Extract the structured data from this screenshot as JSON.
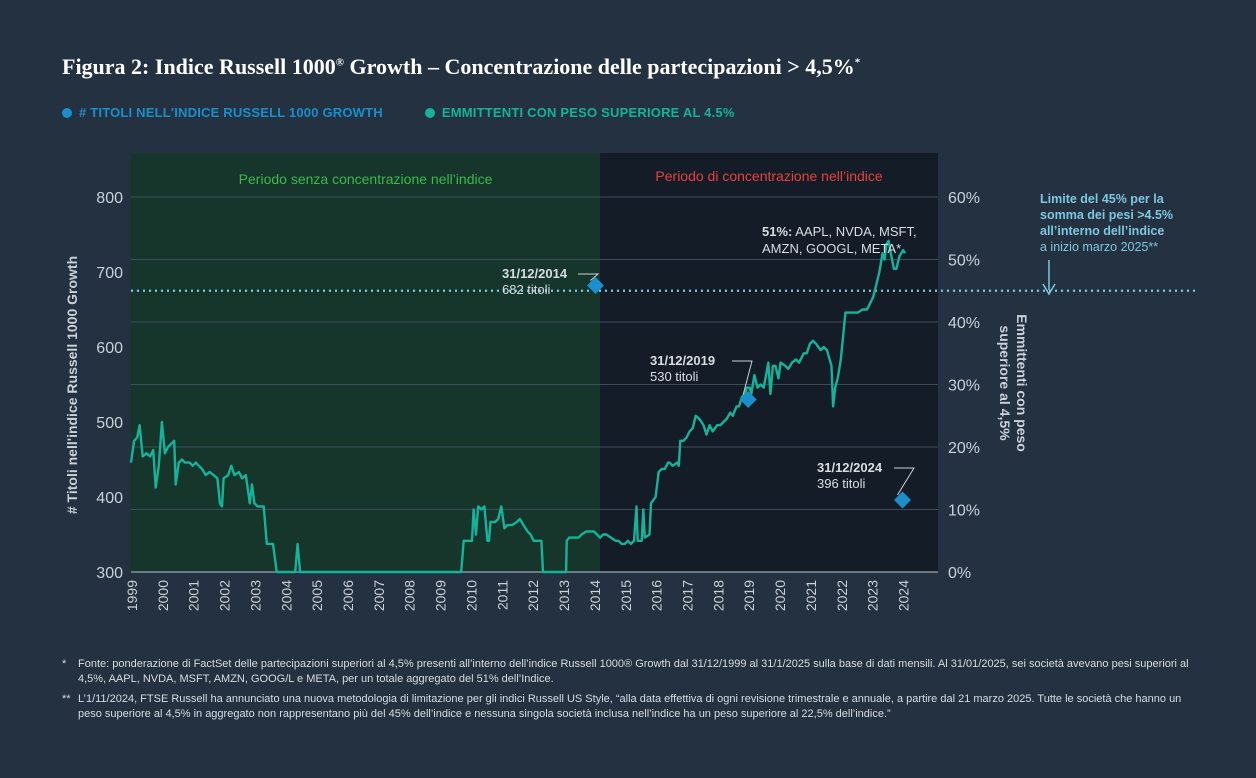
{
  "title": "Figura 2: Indice Russell 1000",
  "title_reg": "®",
  "title_rest": " Growth – Concentrazione delle partecipazioni > 4,5%",
  "title_star": "*",
  "colors": {
    "background": "#233140",
    "period1_bg": "#16352b",
    "period2_bg": "#141d27",
    "series_count": "#1a8fcc",
    "series_line": "#14b39a",
    "period1_label": "#3cba4a",
    "period2_label": "#e8413a",
    "limit_line": "#7ec7e0",
    "marker": "#1a8fcc"
  },
  "legend": [
    {
      "label": "# TITOLI NELL'INDICE RUSSELL 1000 GROWTH",
      "color": "#1a8fcc"
    },
    {
      "label": "EMMITTENTI CON PESO SUPERIORE AL 4.5%",
      "color": "#14b39a"
    }
  ],
  "footnotes": [
    {
      "mark": "*",
      "text": "Fonte: ponderazione di FactSet delle partecipazioni superiori al 4,5% presenti all’interno dell’indice Russell 1000® Growth dal 31/12/1999 al 31/1/2025 sulla base di dati mensili. Al 31/01/2025, sei società avevano pesi superiori al 4,5%, AAPL, NVDA, MSFT, AMZN, GOOG/L e META, per un totale aggregato del 51% dell’Indice."
    },
    {
      "mark": "**",
      "text": "L’1/11/2024, FTSE Russell ha annunciato una nuova metodologia di limitazione per gli indici Russell US Style, “alla data effettiva di ogni revisione trimestrale e annuale, a partire dal 21 marzo 2025. Tutte le società che hanno un peso superiore al 4,5% in aggregato non rappresentano più del 45% dell’indice e nessuna singola società inclusa nell’indice ha un peso superiore al 22,5% dell’indice.”"
    }
  ],
  "chart_data": {
    "type": "line",
    "title": "Figura 2: Indice Russell 1000® Growth – Concentrazione delle partecipazioni > 4,5%",
    "ylabel_left": "# Titoli nell'indice Russell 1000 Growth",
    "ylabel_right": "Emmittenti con peso superiore al 4,5%",
    "ylim_left": [
      300,
      840
    ],
    "ylim_right": [
      0,
      64
    ],
    "x_range": [
      1999.0,
      2025.15
    ],
    "left_ticks": [
      "300",
      "400",
      "500",
      "600",
      "700",
      "800"
    ],
    "left_tick_values": [
      300,
      400,
      500,
      600,
      700,
      800
    ],
    "right_ticks": [
      "0%",
      "10%",
      "20%",
      "30%",
      "40%",
      "50%",
      "60%"
    ],
    "right_tick_values": [
      0,
      10,
      20,
      30,
      40,
      50,
      60
    ],
    "x_ticks": [
      "1999",
      "2000",
      "2001",
      "2002",
      "2003",
      "2004",
      "2005",
      "2006",
      "2007",
      "2008",
      "2009",
      "2010",
      "2011",
      "2012",
      "2013",
      "2014",
      "2015",
      "2016",
      "2017",
      "2018",
      "2019",
      "2020",
      "2021",
      "2022",
      "2023",
      "2024"
    ],
    "periods": [
      {
        "label": "Periodo senza concentrazione nell’indice",
        "from": 1999.0,
        "to": 2014.2
      },
      {
        "label": "Periodo di concentrazione nell’indice",
        "from": 2014.2,
        "to": 2025.15
      }
    ],
    "limit": {
      "value": 45,
      "label_lines": [
        "Limite del 45% per la",
        "somma dei pesi >4.5%",
        "all’interno dell’indice"
      ],
      "sublabel": "a inizio marzo 2025**"
    },
    "series": [
      {
        "name": "Emmittenti con peso superiore al 4.5%",
        "axis": "right",
        "points": [
          [
            1999.0,
            17.5
          ],
          [
            1999.1,
            21
          ],
          [
            1999.2,
            21.5
          ],
          [
            1999.28,
            23.5
          ],
          [
            1999.38,
            18.5
          ],
          [
            1999.5,
            19
          ],
          [
            1999.62,
            18.5
          ],
          [
            1999.72,
            19.5
          ],
          [
            1999.8,
            13.5
          ],
          [
            1999.9,
            17
          ],
          [
            2000.0,
            24
          ],
          [
            2000.1,
            19
          ],
          [
            2000.2,
            20
          ],
          [
            2000.3,
            20.5
          ],
          [
            2000.4,
            21
          ],
          [
            2000.45,
            14
          ],
          [
            2000.55,
            17.5
          ],
          [
            2000.65,
            18
          ],
          [
            2000.75,
            17.5
          ],
          [
            2000.9,
            17.5
          ],
          [
            2001.0,
            17
          ],
          [
            2001.1,
            17.5
          ],
          [
            2001.2,
            17
          ],
          [
            2001.3,
            16.5
          ],
          [
            2001.42,
            15.5
          ],
          [
            2001.55,
            16
          ],
          [
            2001.68,
            15.5
          ],
          [
            2001.8,
            15
          ],
          [
            2001.88,
            11
          ],
          [
            2001.95,
            10.5
          ],
          [
            2002.0,
            15
          ],
          [
            2002.15,
            15.5
          ],
          [
            2002.25,
            17
          ],
          [
            2002.35,
            15.5
          ],
          [
            2002.5,
            16
          ],
          [
            2002.6,
            15
          ],
          [
            2002.72,
            15.5
          ],
          [
            2002.85,
            11
          ],
          [
            2002.92,
            14
          ],
          [
            2003.0,
            11
          ],
          [
            2003.1,
            10.5
          ],
          [
            2003.2,
            10.5
          ],
          [
            2003.3,
            10.5
          ],
          [
            2003.4,
            4.5
          ],
          [
            2003.5,
            4.5
          ],
          [
            2003.6,
            4.5
          ],
          [
            2003.72,
            0
          ],
          [
            2004.0,
            0
          ],
          [
            2004.32,
            0
          ],
          [
            2004.4,
            4.5
          ],
          [
            2004.48,
            0
          ],
          [
            2005.0,
            0
          ],
          [
            2006.0,
            0
          ],
          [
            2007.0,
            0
          ],
          [
            2008.0,
            0
          ],
          [
            2009.0,
            0
          ],
          [
            2009.7,
            0
          ],
          [
            2009.78,
            5
          ],
          [
            2010.0,
            5
          ],
          [
            2010.05,
            5
          ],
          [
            2010.1,
            10
          ],
          [
            2010.18,
            6
          ],
          [
            2010.25,
            10.5
          ],
          [
            2010.35,
            10
          ],
          [
            2010.45,
            10.5
          ],
          [
            2010.55,
            5
          ],
          [
            2010.6,
            5
          ],
          [
            2010.65,
            8
          ],
          [
            2010.8,
            8
          ],
          [
            2010.9,
            8.5
          ],
          [
            2011.0,
            10.5
          ],
          [
            2011.1,
            7
          ],
          [
            2011.2,
            7.5
          ],
          [
            2011.35,
            7.5
          ],
          [
            2011.5,
            8
          ],
          [
            2011.6,
            8.5
          ],
          [
            2011.72,
            7.5
          ],
          [
            2011.85,
            6.5
          ],
          [
            2011.95,
            6
          ],
          [
            2012.05,
            5
          ],
          [
            2012.2,
            5
          ],
          [
            2012.3,
            5
          ],
          [
            2012.35,
            0
          ],
          [
            2013.0,
            0
          ],
          [
            2013.1,
            0
          ],
          [
            2013.12,
            5
          ],
          [
            2013.2,
            5.5
          ],
          [
            2013.3,
            5.5
          ],
          [
            2013.5,
            5.5
          ],
          [
            2013.6,
            6
          ],
          [
            2013.75,
            6.5
          ],
          [
            2013.9,
            6.5
          ],
          [
            2014.0,
            6.5
          ],
          [
            2014.1,
            6
          ],
          [
            2014.2,
            5.5
          ],
          [
            2014.3,
            6
          ],
          [
            2014.4,
            6
          ],
          [
            2014.55,
            5.5
          ],
          [
            2014.7,
            5
          ],
          [
            2014.8,
            5
          ],
          [
            2014.9,
            4.5
          ],
          [
            2015.0,
            4.5
          ],
          [
            2015.1,
            5
          ],
          [
            2015.2,
            4.5
          ],
          [
            2015.3,
            5
          ],
          [
            2015.38,
            10.5
          ],
          [
            2015.42,
            5
          ],
          [
            2015.55,
            5
          ],
          [
            2015.6,
            10
          ],
          [
            2015.65,
            5.5
          ],
          [
            2015.8,
            6
          ],
          [
            2015.85,
            11
          ],
          [
            2016.0,
            12
          ],
          [
            2016.1,
            16
          ],
          [
            2016.2,
            16.5
          ],
          [
            2016.3,
            16.5
          ],
          [
            2016.4,
            17.5
          ],
          [
            2016.45,
            17.5
          ],
          [
            2016.55,
            17
          ],
          [
            2016.7,
            17.5
          ],
          [
            2016.75,
            17
          ],
          [
            2016.8,
            21
          ],
          [
            2016.9,
            21
          ],
          [
            2017.0,
            21.5
          ],
          [
            2017.1,
            22.5
          ],
          [
            2017.2,
            23
          ],
          [
            2017.3,
            25
          ],
          [
            2017.42,
            24.5
          ],
          [
            2017.55,
            23.5
          ],
          [
            2017.65,
            22
          ],
          [
            2017.75,
            23.5
          ],
          [
            2017.85,
            22.5
          ],
          [
            2018.0,
            23.5
          ],
          [
            2018.1,
            23.5
          ],
          [
            2018.2,
            24
          ],
          [
            2018.3,
            24.5
          ],
          [
            2018.42,
            25.5
          ],
          [
            2018.5,
            25
          ],
          [
            2018.62,
            26.5
          ],
          [
            2018.7,
            26.5
          ],
          [
            2018.8,
            28
          ],
          [
            2018.9,
            28.5
          ],
          [
            2018.95,
            29.5
          ],
          [
            2019.05,
            29.5
          ],
          [
            2019.1,
            28.5
          ],
          [
            2019.2,
            31.5
          ],
          [
            2019.3,
            29.5
          ],
          [
            2019.4,
            30
          ],
          [
            2019.5,
            29.5
          ],
          [
            2019.6,
            32
          ],
          [
            2019.65,
            33.5
          ],
          [
            2019.72,
            28.5
          ],
          [
            2019.8,
            33
          ],
          [
            2019.88,
            33
          ],
          [
            2019.98,
            31
          ],
          [
            2020.05,
            33.5
          ],
          [
            2020.2,
            33
          ],
          [
            2020.3,
            32.5
          ],
          [
            2020.42,
            33.5
          ],
          [
            2020.55,
            34
          ],
          [
            2020.65,
            33.5
          ],
          [
            2020.8,
            35
          ],
          [
            2020.9,
            35
          ],
          [
            2021.0,
            36.5
          ],
          [
            2021.1,
            37
          ],
          [
            2021.2,
            36.5
          ],
          [
            2021.35,
            35.5
          ],
          [
            2021.45,
            36
          ],
          [
            2021.55,
            35.5
          ],
          [
            2021.7,
            33
          ],
          [
            2021.75,
            26.5
          ],
          [
            2021.82,
            29.5
          ],
          [
            2021.9,
            31
          ],
          [
            2022.0,
            34
          ],
          [
            2022.1,
            39
          ],
          [
            2022.15,
            41.5
          ],
          [
            2022.3,
            41.5
          ],
          [
            2022.45,
            41.5
          ],
          [
            2022.55,
            41.5
          ],
          [
            2022.7,
            42
          ],
          [
            2022.85,
            42
          ],
          [
            2022.95,
            43
          ],
          [
            2023.05,
            44
          ],
          [
            2023.15,
            46
          ],
          [
            2023.25,
            48
          ],
          [
            2023.35,
            51
          ],
          [
            2023.42,
            50
          ],
          [
            2023.48,
            52.5
          ],
          [
            2023.55,
            53
          ],
          [
            2023.62,
            51
          ],
          [
            2023.72,
            48.5
          ],
          [
            2023.8,
            48.5
          ],
          [
            2023.9,
            50.5
          ],
          [
            2024.02,
            51.5
          ],
          [
            2024.08,
            51
          ]
        ]
      }
    ],
    "markers": [
      {
        "date": "31/12/2014",
        "label": "682 titoli",
        "value": 682
      },
      {
        "date": "31/12/2019",
        "label": "530 titoli",
        "value": 530
      },
      {
        "date": "31/12/2024",
        "label": "396 titoli",
        "value": 396
      }
    ],
    "callout": {
      "bold": "51%:",
      "line1": " AAPL, NVDA, MSFT,",
      "line2": "AMZN, GOOGL, META*"
    }
  }
}
